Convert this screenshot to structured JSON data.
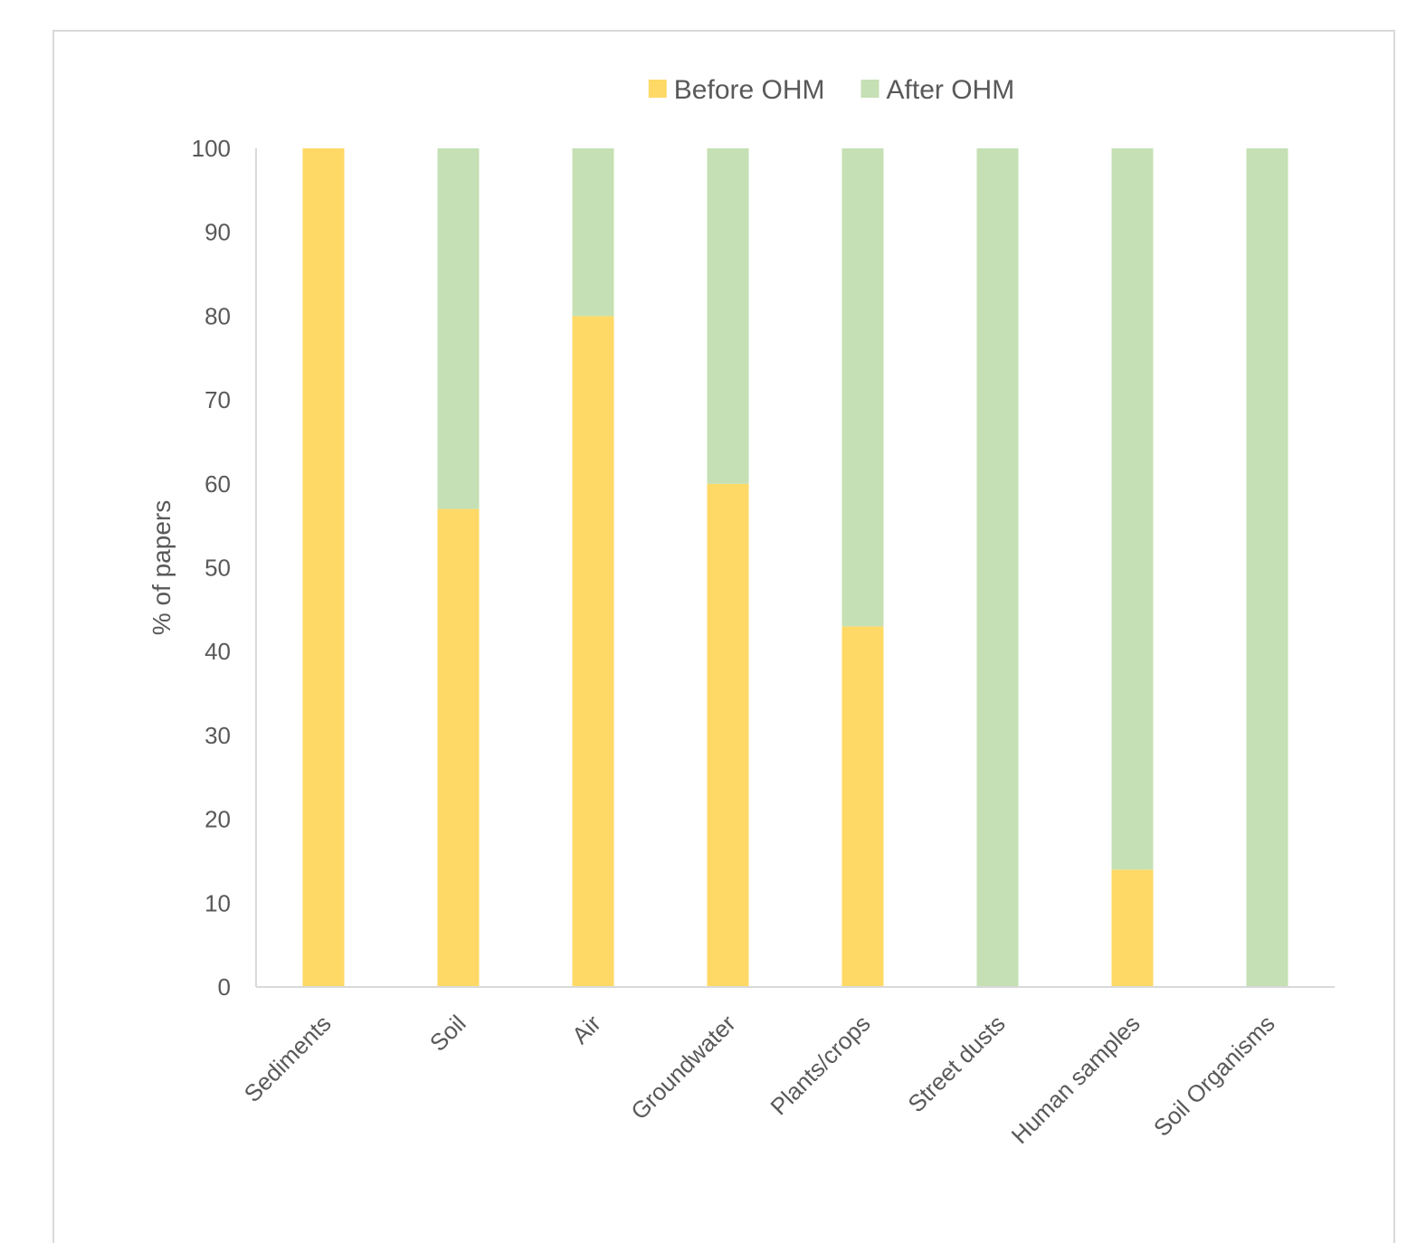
{
  "chart_data": {
    "type": "bar",
    "stacked": true,
    "categories": [
      "Sediments",
      "Soil",
      "Air",
      "Groundwater",
      "Plants/crops",
      "Street dusts",
      "Human samples",
      "Soil Organisms"
    ],
    "series": [
      {
        "name": "Before OHM",
        "color": "#ffd966",
        "values": [
          100,
          57,
          80,
          60,
          43,
          0,
          14,
          0
        ]
      },
      {
        "name": "After OHM",
        "color": "#c5e0b4",
        "values": [
          0,
          43,
          20,
          40,
          57,
          100,
          86,
          100
        ]
      }
    ],
    "ylabel": "% of papers",
    "xlabel": "",
    "ylim": [
      0,
      100
    ],
    "yticks": [
      0,
      10,
      20,
      30,
      40,
      50,
      60,
      70,
      80,
      90,
      100
    ],
    "legend_position": "top-center",
    "grid": false
  }
}
